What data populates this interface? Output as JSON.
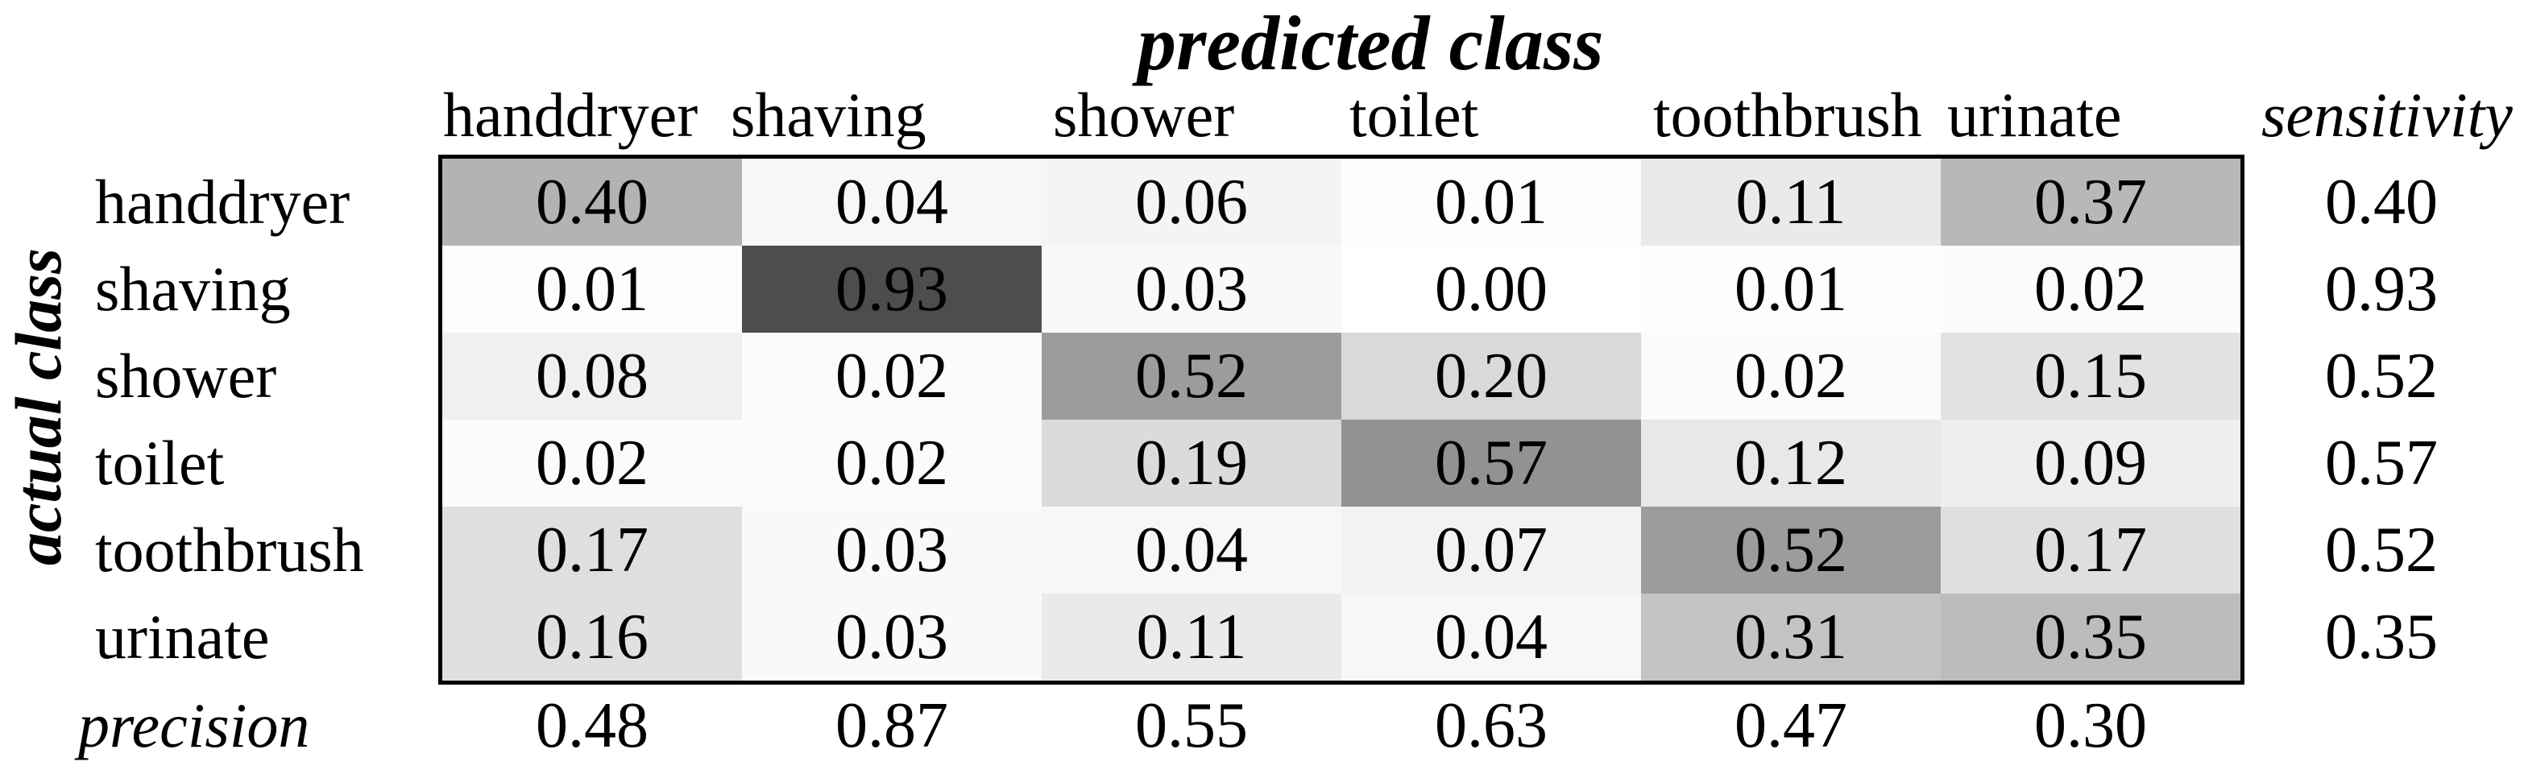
{
  "page": {
    "background_color": "#ffffff",
    "text_color": "#000000",
    "border_color": "#000000"
  },
  "figure": {
    "title": "predicted class",
    "row_axis_label": "actual class",
    "sensitivity_header": "sensitivity",
    "precision_label": "precision"
  },
  "chart_data": {
    "type": "heatmap",
    "title": "predicted class",
    "x_axis_label": "predicted class",
    "y_axis_label": "actual class",
    "legend_position": "none",
    "grid": false,
    "classes": [
      "handdryer",
      "shaving",
      "shower",
      "toilet",
      "toothbrush",
      "urinate"
    ],
    "matrix_rows_actual_cols_predicted": [
      [
        0.4,
        0.04,
        0.06,
        0.01,
        0.11,
        0.37
      ],
      [
        0.01,
        0.93,
        0.03,
        0.0,
        0.01,
        0.02
      ],
      [
        0.08,
        0.02,
        0.52,
        0.2,
        0.02,
        0.15
      ],
      [
        0.02,
        0.02,
        0.19,
        0.57,
        0.12,
        0.09
      ],
      [
        0.17,
        0.03,
        0.04,
        0.07,
        0.52,
        0.17
      ],
      [
        0.16,
        0.03,
        0.11,
        0.04,
        0.31,
        0.35
      ]
    ],
    "sensitivity": [
      0.4,
      0.93,
      0.52,
      0.57,
      0.52,
      0.35
    ],
    "precision": [
      0.48,
      0.87,
      0.55,
      0.63,
      0.47,
      0.3
    ],
    "value_decimals": 2,
    "value_range": [
      0,
      1
    ],
    "shading": {
      "description": "cell gray darkness proportional to value",
      "zero_color": "#ffffff",
      "one_color": "#404040"
    }
  }
}
